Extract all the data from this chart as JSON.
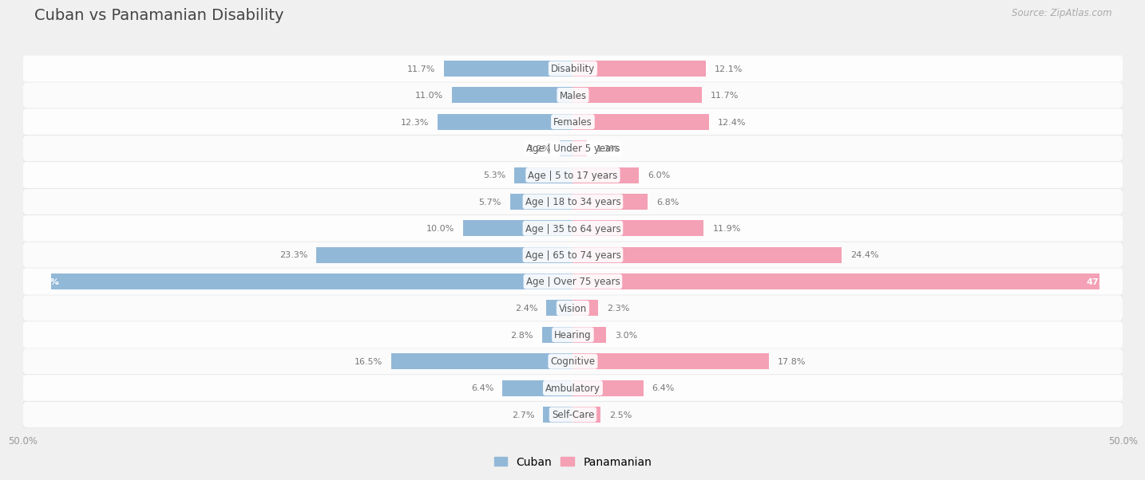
{
  "title": "Cuban vs Panamanian Disability",
  "source": "Source: ZipAtlas.com",
  "categories": [
    "Disability",
    "Males",
    "Females",
    "Age | Under 5 years",
    "Age | 5 to 17 years",
    "Age | 18 to 34 years",
    "Age | 35 to 64 years",
    "Age | 65 to 74 years",
    "Age | Over 75 years",
    "Vision",
    "Hearing",
    "Cognitive",
    "Ambulatory",
    "Self-Care"
  ],
  "cuban_values": [
    11.7,
    11.0,
    12.3,
    1.2,
    5.3,
    5.7,
    10.0,
    23.3,
    47.4,
    2.4,
    2.8,
    16.5,
    6.4,
    2.7
  ],
  "panamanian_values": [
    12.1,
    11.7,
    12.4,
    1.3,
    6.0,
    6.8,
    11.9,
    24.4,
    47.9,
    2.3,
    3.0,
    17.8,
    6.4,
    2.5
  ],
  "cuban_color": "#92b8d8",
  "panamanian_color": "#f4a0b5",
  "cuban_color_dark": "#6a9ec0",
  "panamanian_color_dark": "#e87a9a",
  "max_value": 50.0,
  "background_color": "#f0f0f0",
  "row_color_odd": "#e8e8e8",
  "row_color_even": "#f5f5f5",
  "bar_height": 0.6,
  "title_fontsize": 14,
  "label_fontsize": 8.5,
  "value_fontsize": 8,
  "legend_fontsize": 10,
  "legend_labels": [
    "Cuban",
    "Panamanian"
  ]
}
